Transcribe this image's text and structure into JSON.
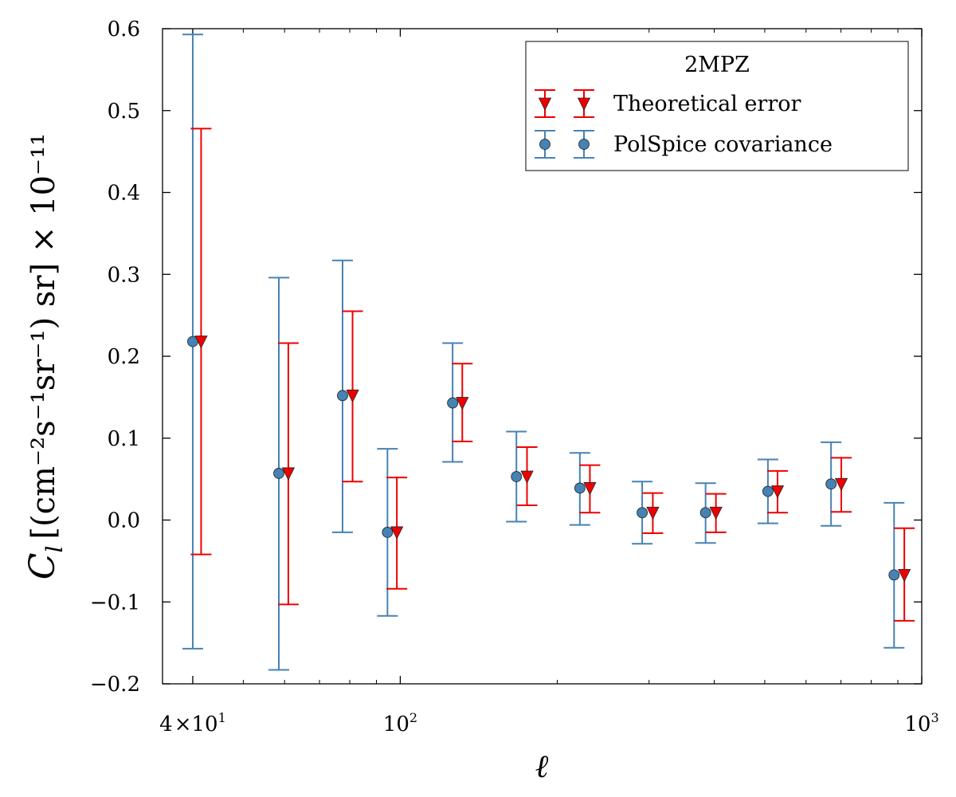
{
  "chart_data": {
    "type": "errorbar",
    "title": "",
    "xlabel": "ℓ",
    "ylabel_base": "C",
    "ylabel_sub": "l",
    "ylabel_units": "[(cm⁻²s⁻¹sr⁻¹) sr] × 10⁻¹¹",
    "xscale": "log",
    "xlim": [
      35,
      1000
    ],
    "ylim": [
      -0.2,
      0.6
    ],
    "y_ticks": [
      -0.2,
      -0.1,
      0.0,
      0.1,
      0.2,
      0.3,
      0.4,
      0.5,
      0.6
    ],
    "y_tick_labels": [
      "−0.2",
      "−0.1",
      "0.0",
      "0.1",
      "0.2",
      "0.3",
      "0.4",
      "0.5",
      "0.6"
    ],
    "x_major_ticks": [
      {
        "value": 40,
        "mantissa": "4",
        "times": "×",
        "base": "10",
        "exp": "1"
      },
      {
        "value": 100,
        "mantissa": "",
        "times": "",
        "base": "10",
        "exp": "2"
      },
      {
        "value": 1000,
        "mantissa": "",
        "times": "",
        "base": "10",
        "exp": "3"
      }
    ],
    "x_minor_ticks": [
      40,
      50,
      60,
      70,
      80,
      90,
      200,
      300,
      400,
      500,
      600,
      700,
      800,
      900
    ],
    "legend": {
      "title": "2MPZ",
      "location": "upper right",
      "entries": [
        {
          "label": "Theoretical error",
          "series_index": 0
        },
        {
          "label": "PolSpice covariance",
          "series_index": 1
        }
      ]
    },
    "series": [
      {
        "name": "Theoretical error",
        "color": "#ee0000",
        "marker": "triangle-down",
        "points": [
          {
            "x": 41.5,
            "y": 0.218,
            "ylow": -0.042,
            "yhigh": 0.478
          },
          {
            "x": 61,
            "y": 0.057,
            "ylow": -0.103,
            "yhigh": 0.216
          },
          {
            "x": 81,
            "y": 0.152,
            "ylow": 0.047,
            "yhigh": 0.255
          },
          {
            "x": 98.5,
            "y": -0.015,
            "ylow": -0.084,
            "yhigh": 0.052
          },
          {
            "x": 131.5,
            "y": 0.143,
            "ylow": 0.096,
            "yhigh": 0.191
          },
          {
            "x": 175,
            "y": 0.053,
            "ylow": 0.018,
            "yhigh": 0.089
          },
          {
            "x": 231,
            "y": 0.039,
            "ylow": 0.009,
            "yhigh": 0.067
          },
          {
            "x": 305,
            "y": 0.009,
            "ylow": -0.016,
            "yhigh": 0.033
          },
          {
            "x": 403,
            "y": 0.009,
            "ylow": -0.015,
            "yhigh": 0.032
          },
          {
            "x": 529,
            "y": 0.035,
            "ylow": 0.009,
            "yhigh": 0.06
          },
          {
            "x": 701,
            "y": 0.044,
            "ylow": 0.01,
            "yhigh": 0.076
          },
          {
            "x": 926,
            "y": -0.067,
            "ylow": -0.123,
            "yhigh": -0.01
          }
        ]
      },
      {
        "name": "PolSpice covariance",
        "color": "#4682b4",
        "marker": "circle",
        "points": [
          {
            "x": 40,
            "y": 0.218,
            "ylow": -0.157,
            "yhigh": 0.593
          },
          {
            "x": 58.5,
            "y": 0.057,
            "ylow": -0.183,
            "yhigh": 0.296
          },
          {
            "x": 77.5,
            "y": 0.152,
            "ylow": -0.015,
            "yhigh": 0.317
          },
          {
            "x": 94.5,
            "y": -0.015,
            "ylow": -0.117,
            "yhigh": 0.087
          },
          {
            "x": 126,
            "y": 0.143,
            "ylow": 0.071,
            "yhigh": 0.216
          },
          {
            "x": 167,
            "y": 0.053,
            "ylow": -0.002,
            "yhigh": 0.108
          },
          {
            "x": 221,
            "y": 0.039,
            "ylow": -0.006,
            "yhigh": 0.082
          },
          {
            "x": 291,
            "y": 0.009,
            "ylow": -0.029,
            "yhigh": 0.047
          },
          {
            "x": 385,
            "y": 0.009,
            "ylow": -0.028,
            "yhigh": 0.045
          },
          {
            "x": 507,
            "y": 0.035,
            "ylow": -0.004,
            "yhigh": 0.074
          },
          {
            "x": 670,
            "y": 0.044,
            "ylow": -0.007,
            "yhigh": 0.095
          },
          {
            "x": 885,
            "y": -0.067,
            "ylow": -0.156,
            "yhigh": 0.021
          }
        ]
      }
    ]
  }
}
